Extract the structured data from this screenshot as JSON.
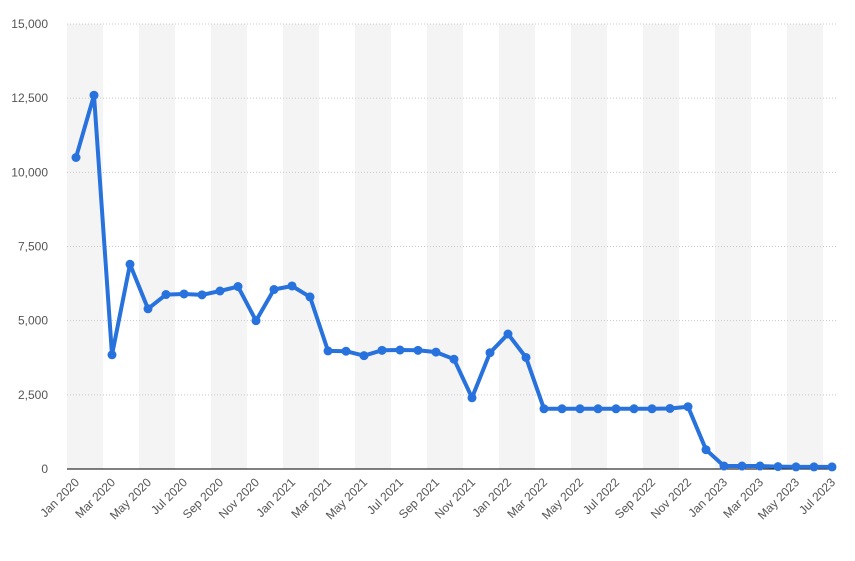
{
  "chart_data": {
    "type": "line",
    "title": "",
    "xlabel": "",
    "ylabel": "",
    "ylim": [
      0,
      15000
    ],
    "y_ticks": [
      0,
      2500,
      5000,
      7500,
      10000,
      12500,
      15000
    ],
    "y_tick_labels": [
      "0",
      "2,500",
      "5,000",
      "7,500",
      "10,000",
      "12,500",
      "15,000"
    ],
    "x_tick_labels": [
      "Jan 2020",
      "Mar 2020",
      "May 2020",
      "Jul 2020",
      "Sep 2020",
      "Nov 2020",
      "Jan 2021",
      "Mar 2021",
      "May 2021",
      "Jul 2021",
      "Sep 2021",
      "Nov 2021",
      "Jan 2022",
      "Mar 2022",
      "May 2022",
      "Jul 2022",
      "Sep 2022",
      "Nov 2022",
      "Jan 2023",
      "Mar 2023",
      "May 2023",
      "Jul 2023"
    ],
    "grid": true,
    "legend": "none",
    "colors": {
      "line": "#2872dd",
      "band": "#f4f4f4",
      "grid": "#c8c8c8",
      "axis": "#000000",
      "tick_text": "#555555"
    },
    "x": [
      "Jan 2020",
      "Feb 2020",
      "Mar 2020",
      "Apr 2020",
      "May 2020",
      "Jun 2020",
      "Jul 2020",
      "Aug 2020",
      "Sep 2020",
      "Oct 2020",
      "Nov 2020",
      "Dec 2020",
      "Jan 2021",
      "Feb 2021",
      "Mar 2021",
      "Apr 2021",
      "May 2021",
      "Jun 2021",
      "Jul 2021",
      "Aug 2021",
      "Sep 2021",
      "Oct 2021",
      "Nov 2021",
      "Dec 2021",
      "Jan 2022",
      "Feb 2022",
      "Mar 2022",
      "Apr 2022",
      "May 2022",
      "Jun 2022",
      "Jul 2022",
      "Aug 2022",
      "Sep 2022",
      "Oct 2022",
      "Nov 2022",
      "Dec 2022",
      "Jan 2023",
      "Feb 2023",
      "Mar 2023",
      "Apr 2023",
      "May 2023",
      "Jun 2023",
      "Jul 2023"
    ],
    "series": [
      {
        "values": [
          10500,
          12600,
          3850,
          6900,
          5400,
          5880,
          5900,
          5870,
          6000,
          6150,
          5000,
          6050,
          6170,
          5800,
          3980,
          3970,
          3820,
          4000,
          4010,
          4000,
          3940,
          3700,
          2400,
          3920,
          4550,
          3760,
          2030,
          2030,
          2030,
          2030,
          2030,
          2030,
          2030,
          2040,
          2100,
          650,
          100,
          100,
          100,
          80,
          70,
          70,
          70
        ]
      }
    ]
  }
}
